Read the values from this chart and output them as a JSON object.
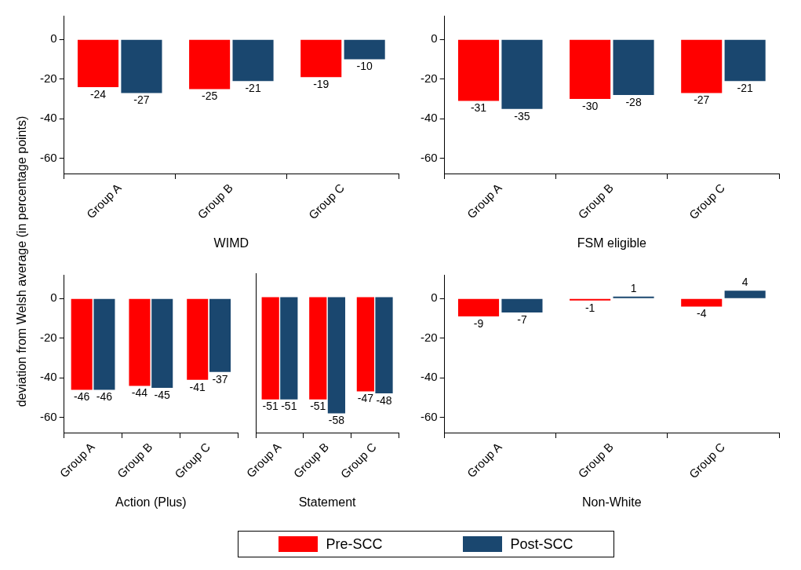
{
  "chart_data": [
    {
      "type": "bar",
      "xlabel": "WIMD",
      "ylabel": "deviation from Welsh average (in percentage points)",
      "categories": [
        "Group A",
        "Group B",
        "Group C"
      ],
      "series": [
        {
          "name": "Pre-SCC",
          "color": "#ff0000",
          "values": [
            -24,
            -25,
            -19
          ]
        },
        {
          "name": "Post-SCC",
          "color": "#1a476f",
          "values": [
            -27,
            -21,
            -10
          ]
        }
      ],
      "ylim": [
        -68,
        12
      ],
      "yticks": [
        0,
        -20,
        -40,
        -60
      ],
      "data_labels": true,
      "legend": "bottom"
    },
    {
      "type": "bar",
      "xlabel": "FSM eligible",
      "categories": [
        "Group A",
        "Group B",
        "Group C"
      ],
      "series": [
        {
          "color": "#ff0000",
          "values": [
            -31,
            -30,
            -27
          ]
        },
        {
          "color": "#1a476f",
          "values": [
            -35,
            -28,
            -21
          ]
        }
      ],
      "ylim": [
        -68,
        12
      ],
      "yticks": [
        0,
        -20,
        -40,
        -60
      ],
      "data_labels": true
    },
    {
      "type": "bar",
      "xlabel": "Action (Plus)",
      "categories": [
        "Group A",
        "Group B",
        "Group C"
      ],
      "series": [
        {
          "color": "#ff0000",
          "values": [
            -46,
            -44,
            -41
          ]
        },
        {
          "color": "#1a476f",
          "values": [
            -46,
            -45,
            -37
          ]
        }
      ],
      "ylim": [
        -68,
        12
      ],
      "yticks": [
        0,
        -20,
        -40,
        -60
      ],
      "data_labels": true
    },
    {
      "type": "bar",
      "xlabel": "Statement",
      "categories": [
        "Group A",
        "Group B",
        "Group C"
      ],
      "series": [
        {
          "color": "#ff0000",
          "values": [
            -51,
            -51,
            -47
          ]
        },
        {
          "color": "#1a476f",
          "values": [
            -51,
            -58,
            -48
          ]
        }
      ],
      "ylim": [
        -68,
        12
      ],
      "yticks": [
        0,
        -20,
        -40,
        -60
      ],
      "data_labels": true,
      "tick_labels": "x"
    },
    {
      "type": "bar",
      "xlabel": "Non-White",
      "categories": [
        "Group A",
        "Group B",
        "Group C"
      ],
      "series": [
        {
          "color": "#ff0000",
          "values": [
            -9,
            -1,
            -4
          ]
        },
        {
          "color": "#1a476f",
          "values": [
            -7,
            1,
            4
          ]
        }
      ],
      "ylim": [
        -68,
        12
      ],
      "yticks": [
        0,
        -20,
        -40,
        -60
      ],
      "data_labels": true
    }
  ]
}
